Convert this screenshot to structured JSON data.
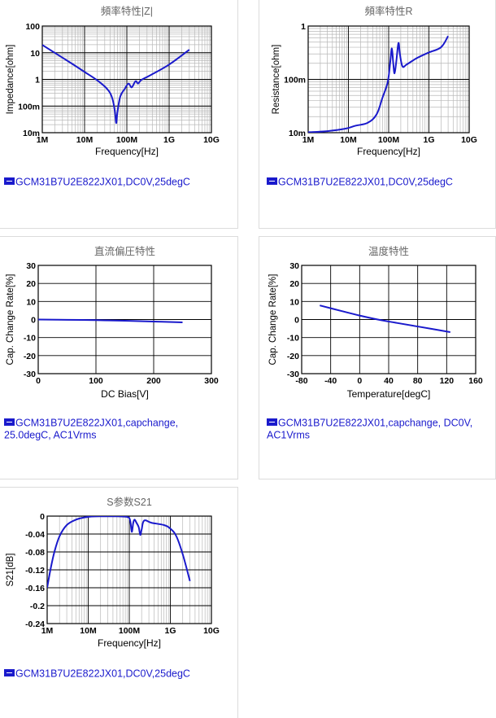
{
  "chart_data": [
    {
      "type": "line",
      "title": "頻率特性|Z|",
      "xlabel": "Frequency[Hz]",
      "ylabel": "Impedance[ohm]",
      "xscale": "log",
      "yscale": "log",
      "xlim": [
        1000000,
        10000000000
      ],
      "ylim": [
        0.01,
        100
      ],
      "xticks": [
        "1M",
        "10M",
        "100M",
        "1G",
        "10G"
      ],
      "yticks": [
        "100",
        "10",
        "1",
        "100m",
        "10m"
      ],
      "grid": true,
      "series": [
        {
          "name": "GCM31B7U2E822JX01,DC0V,25degC",
          "color": "#1a1acc",
          "x": [
            1000000,
            2000000,
            5000000,
            10000000,
            20000000,
            35000000,
            45000000,
            52000000,
            56000000,
            60000000,
            70000000,
            90000000,
            110000000,
            130000000,
            160000000,
            185000000,
            220000000,
            350000000,
            1000000000,
            3000000000
          ],
          "y": [
            19.5,
            9.8,
            3.9,
            1.9,
            0.92,
            0.42,
            0.2,
            0.065,
            0.023,
            0.06,
            0.23,
            0.45,
            0.7,
            0.5,
            0.85,
            0.7,
            0.95,
            1.4,
            3.6,
            13
          ]
        }
      ]
    },
    {
      "type": "line",
      "title": "頻率特性R",
      "xlabel": "Frequency[Hz]",
      "ylabel": "Resistance[ohm]",
      "xscale": "log",
      "yscale": "log",
      "xlim": [
        1000000,
        10000000000
      ],
      "ylim": [
        0.01,
        1
      ],
      "xticks": [
        "1M",
        "10M",
        "100M",
        "1G",
        "10G"
      ],
      "yticks": [
        "1",
        "100m",
        "10m"
      ],
      "grid": true,
      "series": [
        {
          "name": "GCM31B7U2E822JX01,DC0V,25degC",
          "color": "#1a1acc",
          "x": [
            1000000,
            3000000,
            8000000,
            15000000,
            30000000,
            50000000,
            70000000,
            95000000,
            110000000,
            120000000,
            130000000,
            140000000,
            155000000,
            175000000,
            190000000,
            220000000,
            280000000,
            500000000,
            1000000000,
            2000000000,
            3000000000
          ],
          "y": [
            0.0102,
            0.0107,
            0.0118,
            0.0135,
            0.0153,
            0.022,
            0.045,
            0.09,
            0.22,
            0.38,
            0.2,
            0.13,
            0.22,
            0.48,
            0.3,
            0.175,
            0.19,
            0.25,
            0.32,
            0.4,
            0.65
          ]
        }
      ]
    },
    {
      "type": "line",
      "title": "直流偏圧特性",
      "xlabel": "DC Bias[V]",
      "ylabel": "Cap. Change Rate[%]",
      "xlim": [
        0,
        300
      ],
      "ylim": [
        -30,
        30
      ],
      "xticks": [
        "0",
        "100",
        "200",
        "300"
      ],
      "yticks": [
        "30",
        "20",
        "10",
        "0",
        "-10",
        "-20",
        "-30"
      ],
      "grid": true,
      "series": [
        {
          "name": "GCM31B7U2E822JX01,capchange, 25.0degC, AC1Vrms",
          "color": "#1a1acc",
          "x": [
            0,
            50,
            100,
            150,
            200,
            250
          ],
          "y": [
            0,
            -0.15,
            -0.35,
            -0.7,
            -1.1,
            -1.6
          ]
        }
      ]
    },
    {
      "type": "line",
      "title": "温度特性",
      "xlabel": "Temperature[degC]",
      "ylabel": "Cap. Change Rate[%]",
      "xlim": [
        -80,
        160
      ],
      "ylim": [
        -30,
        30
      ],
      "xticks": [
        "-80",
        "-40",
        "0",
        "40",
        "80",
        "120",
        "160"
      ],
      "yticks": [
        "30",
        "20",
        "10",
        "0",
        "-10",
        "-20",
        "-30"
      ],
      "grid": true,
      "series": [
        {
          "name": "GCM31B7U2E822JX01,capchange, DC0V, AC1Vrms",
          "color": "#1a1acc",
          "x": [
            -55,
            -25,
            0,
            25,
            50,
            85,
            125
          ],
          "y": [
            7.8,
            4.7,
            2.2,
            0,
            -1.8,
            -4.2,
            -7
          ]
        }
      ]
    },
    {
      "type": "line",
      "title": "S参数S21",
      "xlabel": "Frequency[Hz]",
      "ylabel": "S21[dB]",
      "xscale": "log",
      "xlim": [
        1000000,
        10000000000
      ],
      "ylim": [
        -0.24,
        0
      ],
      "xticks": [
        "1M",
        "10M",
        "100M",
        "1G",
        "10G"
      ],
      "yticks": [
        "0",
        "-0.04",
        "-0.08",
        "-0.12",
        "-0.16",
        "-0.2",
        "-0.24"
      ],
      "grid": true,
      "series": [
        {
          "name": "GCM31B7U2E822JX01,DC0V,25degC",
          "color": "#1a1acc",
          "x": [
            1000000,
            1200000,
            1500000,
            2000000,
            3000000,
            5000000,
            8000000,
            12000000,
            20000000,
            50000000,
            90000000,
            105000000,
            115000000,
            125000000,
            135000000,
            150000000,
            170000000,
            185000000,
            200000000,
            230000000,
            350000000,
            700000000,
            1000000000,
            1400000000,
            2000000000,
            3000000000
          ],
          "y": [
            -0.16,
            -0.12,
            -0.08,
            -0.045,
            -0.02,
            -0.008,
            -0.003,
            -0.001,
            -0.0005,
            -0.0005,
            -0.002,
            -0.01,
            -0.035,
            -0.015,
            -0.008,
            -0.015,
            -0.025,
            -0.042,
            -0.03,
            -0.01,
            -0.015,
            -0.02,
            -0.028,
            -0.045,
            -0.085,
            -0.145
          ]
        }
      ]
    }
  ]
}
